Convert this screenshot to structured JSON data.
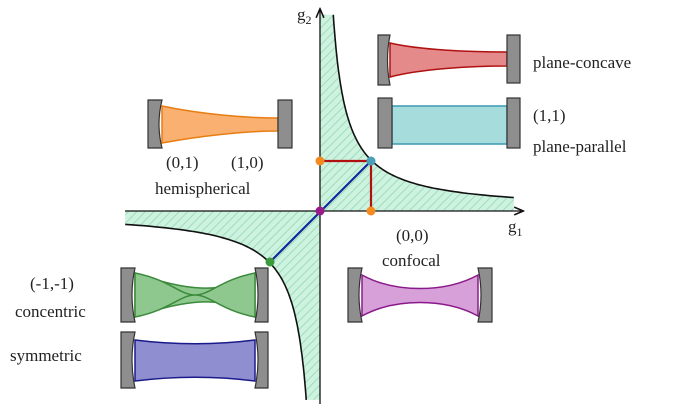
{
  "axes": {
    "x": {
      "symbol": "g",
      "subscript": "1"
    },
    "y": {
      "symbol": "g",
      "subscript": "2"
    }
  },
  "nodes": [
    {
      "coords": "(1,1)",
      "label": "plane-parallel"
    },
    {
      "label": "plane-concave"
    },
    {
      "coords": [
        "(0,1)",
        "(1,0)"
      ],
      "label": "hemispherical"
    },
    {
      "coords": "(0,0)",
      "label": "confocal"
    },
    {
      "coords": "(-1,-1)",
      "label": "concentric"
    },
    {
      "label": "symmetric"
    }
  ]
}
